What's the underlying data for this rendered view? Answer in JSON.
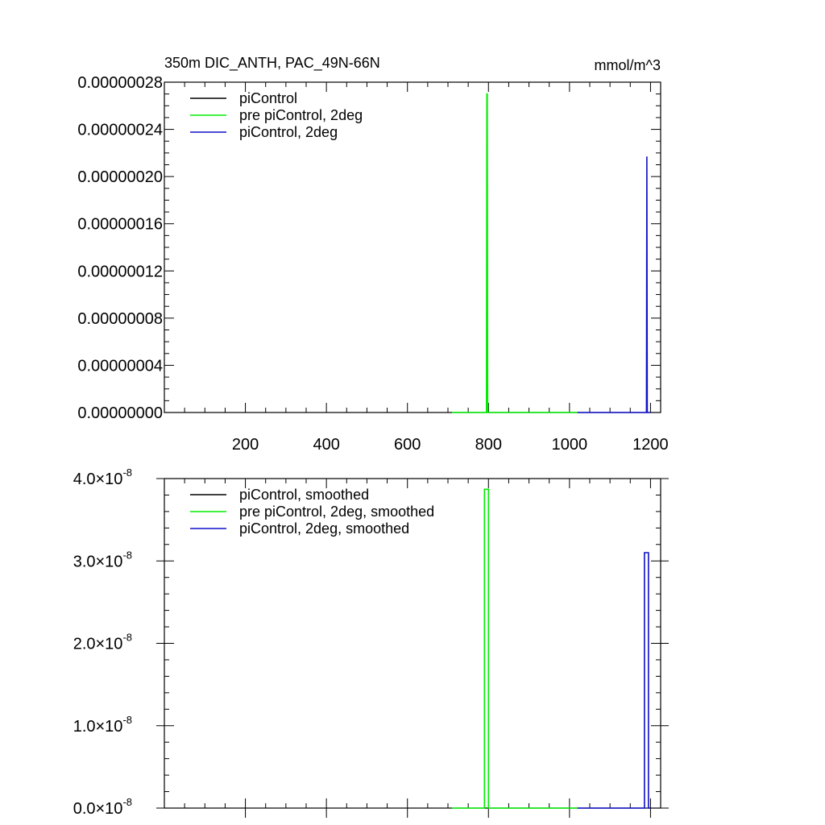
{
  "figure": {
    "title": "350m DIC_ANTH, PAC_49N-66N",
    "units": "mmol/m^3"
  },
  "colors": {
    "piControl": "#000000",
    "pre_piControl_2deg": "#00ee00",
    "piControl_2deg": "#1010c8"
  },
  "chart_data": [
    {
      "type": "line",
      "x_axis": {
        "range": [
          0,
          1225
        ],
        "ticks": [
          200,
          400,
          600,
          800,
          1000,
          1200
        ],
        "tick_labels": [
          "200",
          "400",
          "600",
          "800",
          "1000",
          "1200"
        ]
      },
      "y_axis": {
        "range": [
          0,
          2.8e-07
        ],
        "ticks": [
          0,
          4e-08,
          8e-08,
          1.2e-07,
          1.6e-07,
          2e-07,
          2.4e-07,
          2.8e-07
        ],
        "tick_labels": [
          "0.00000000",
          "0.00000004",
          "0.00000008",
          "0.00000012",
          "0.00000016",
          "0.00000020",
          "0.00000024",
          "0.00000028"
        ]
      },
      "legend": {
        "placement": "top-left"
      },
      "series": [
        {
          "name": "piControl",
          "color_key": "piControl",
          "x": [],
          "y": []
        },
        {
          "name": "pre piControl, 2deg",
          "color_key": "pre_piControl_2deg",
          "x": [
            710,
            795,
            796,
            797,
            798,
            1020
          ],
          "y": [
            0,
            0,
            2.7e-07,
            2.7e-07,
            0,
            0
          ]
        },
        {
          "name": "piControl, 2deg",
          "color_key": "piControl_2deg",
          "x": [
            1020,
            1190,
            1191,
            1192,
            1200
          ],
          "y": [
            0,
            0,
            2.17e-07,
            0,
            0
          ]
        }
      ]
    },
    {
      "type": "line",
      "x_axis": {
        "range": [
          0,
          1225
        ],
        "ticks": [
          200,
          400,
          600,
          800,
          1000,
          1200
        ],
        "tick_labels": []
      },
      "y_axis": {
        "range": [
          0,
          4e-08
        ],
        "ticks": [
          0,
          1e-08,
          2e-08,
          3e-08,
          4e-08
        ],
        "tick_labels": [
          {
            "mantissa": "0.0",
            "exponent": "-8"
          },
          {
            "mantissa": "1.0",
            "exponent": "-8"
          },
          {
            "mantissa": "2.0",
            "exponent": "-8"
          },
          {
            "mantissa": "3.0",
            "exponent": "-8"
          },
          {
            "mantissa": "4.0",
            "exponent": "-8"
          }
        ]
      },
      "legend": {
        "placement": "top-left"
      },
      "series": [
        {
          "name": "piControl, smoothed",
          "color_key": "piControl",
          "x": [],
          "y": []
        },
        {
          "name": "pre piControl, 2deg, smoothed",
          "color_key": "pre_piControl_2deg",
          "x": [
            710,
            790,
            790,
            800,
            800,
            1020
          ],
          "y": [
            0,
            0,
            3.87e-08,
            3.87e-08,
            0,
            0
          ]
        },
        {
          "name": "piControl, 2deg, smoothed",
          "color_key": "piControl_2deg",
          "x": [
            1020,
            1185,
            1185,
            1195,
            1195,
            1200
          ],
          "y": [
            0,
            0,
            3.1e-08,
            3.1e-08,
            0,
            0
          ]
        }
      ]
    }
  ]
}
